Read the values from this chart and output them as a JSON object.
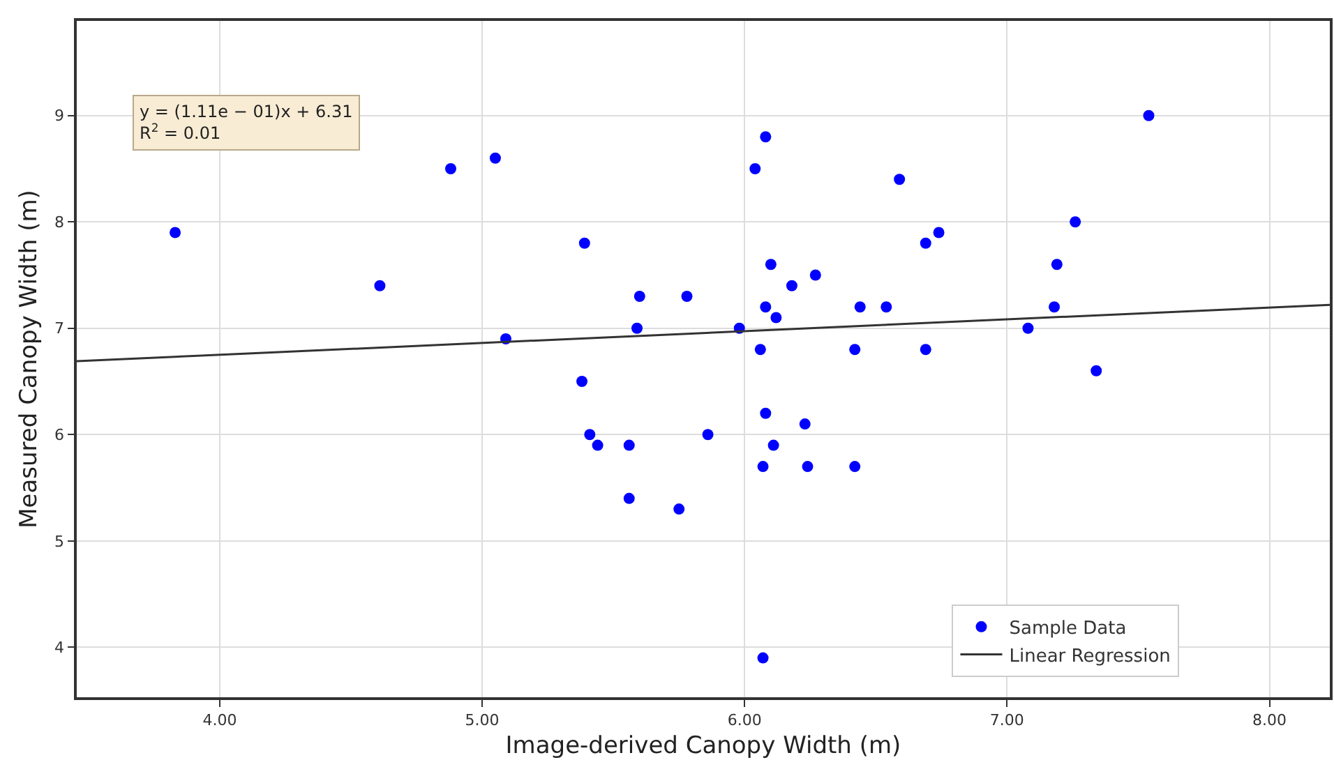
{
  "chart_data": {
    "type": "scatter",
    "xlabel": "Image-derived Canopy Width (m)",
    "ylabel": "Measured Canopy Width (m)",
    "xlim": [
      3.455,
      8.23
    ],
    "ylim": [
      3.53,
      9.89
    ],
    "xticks": [
      {
        "value": 4,
        "label": "4.00"
      },
      {
        "value": 5,
        "label": "5.00"
      },
      {
        "value": 6,
        "label": "6.00"
      },
      {
        "value": 7,
        "label": "7.00"
      },
      {
        "value": 8,
        "label": "8.00"
      }
    ],
    "yticks": [
      4,
      5,
      6,
      7,
      8,
      9
    ],
    "grid": true,
    "legend": "bottom right",
    "annotations": [
      "y = (1.11e − 01)x + 6.31\nR$^{2}$ = 0.01"
    ],
    "series": [
      {
        "name": "Sample Data",
        "marker": "circle",
        "color": "#0000ff",
        "x": [
          3.83,
          4.61,
          4.88,
          5.05,
          5.09,
          5.39,
          5.6,
          5.78,
          5.59,
          5.38,
          5.41,
          5.44,
          5.56,
          5.56,
          5.75,
          5.86,
          5.98,
          6.04,
          6.08,
          6.06,
          6.08,
          6.1,
          6.12,
          6.08,
          6.11,
          6.07,
          6.07,
          6.18,
          6.23,
          6.24,
          6.27,
          6.42,
          6.42,
          6.44,
          6.54,
          6.59,
          6.69,
          6.69,
          6.74,
          7.08,
          7.18,
          7.19,
          7.26,
          7.34,
          7.54
        ],
        "values": [
          7.9,
          7.4,
          8.5,
          8.6,
          6.9,
          7.8,
          7.3,
          7.3,
          7.0,
          6.5,
          6.0,
          5.9,
          5.9,
          5.4,
          5.3,
          6.0,
          7.0,
          8.5,
          8.8,
          6.8,
          7.2,
          7.6,
          7.1,
          6.2,
          5.9,
          5.7,
          3.9,
          7.4,
          6.1,
          5.7,
          7.5,
          6.8,
          5.7,
          7.2,
          7.2,
          8.4,
          7.8,
          6.8,
          7.9,
          7.0,
          7.2,
          7.6,
          8.0,
          6.6,
          9.0
        ]
      },
      {
        "name": "Linear Regression",
        "type": "line",
        "marker": "none",
        "line_style": "solid",
        "color": "#333333",
        "x": [
          3.455,
          8.23
        ],
        "values": [
          6.69,
          7.22
        ]
      }
    ]
  }
}
